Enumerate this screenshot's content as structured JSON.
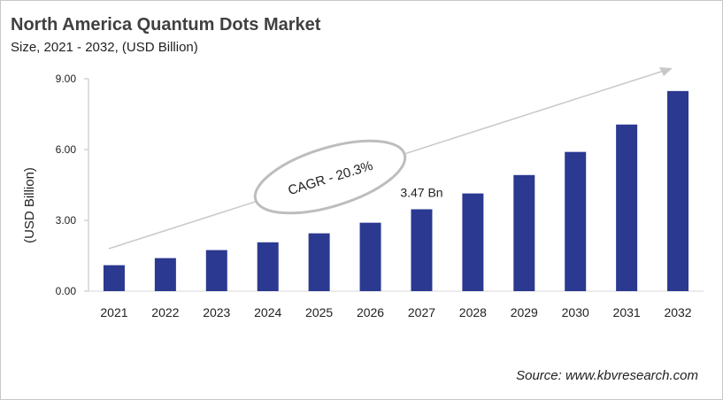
{
  "header": {
    "title": "North America Quantum Dots Market",
    "subtitle": "Size, 2021 - 2032, (USD Billion)"
  },
  "source": "Source: www.kbvresearch.com",
  "chart_data": {
    "type": "bar",
    "title": "North America Quantum Dots Market",
    "subtitle": "Size, 2021 - 2032, (USD Billion)",
    "xlabel": "",
    "ylabel": "(USD Billion)",
    "categories": [
      "2021",
      "2022",
      "2023",
      "2024",
      "2025",
      "2026",
      "2027",
      "2028",
      "2029",
      "2030",
      "2031",
      "2032"
    ],
    "values": [
      1.1,
      1.4,
      1.74,
      2.07,
      2.45,
      2.9,
      3.47,
      4.14,
      4.92,
      5.9,
      7.06,
      8.48
    ],
    "ylim": [
      0,
      9
    ],
    "yticks": [
      "0.00",
      "3.00",
      "6.00",
      "9.00"
    ],
    "ytick_values": [
      0,
      3,
      6,
      9
    ],
    "grid": false,
    "bar_color": "#2b3990",
    "annotations": {
      "data_label": "3.47 Bn",
      "data_label_category": "2027",
      "cagr": "CAGR - 20.3%"
    }
  }
}
